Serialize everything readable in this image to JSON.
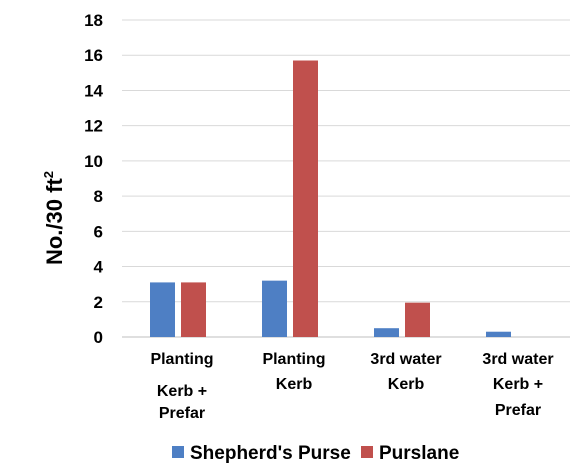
{
  "chart_data": {
    "type": "bar",
    "ylabel": "No./30 ft",
    "ylabel_superscript": "2",
    "ylim": [
      0,
      18
    ],
    "yticks": [
      0,
      2,
      4,
      6,
      8,
      10,
      12,
      14,
      16,
      18
    ],
    "grid": true,
    "legend_position": "bottom",
    "categories": [
      [
        "Planting",
        "Kerb +",
        "Prefar"
      ],
      [
        "Planting",
        "Kerb"
      ],
      [
        "3rd water",
        "Kerb"
      ],
      [
        "3rd water",
        "Kerb +",
        "Prefar"
      ]
    ],
    "series": [
      {
        "name": "Shepherd's Purse",
        "color": "#4e7fc4",
        "values": [
          3.1,
          3.2,
          0.5,
          0.3
        ]
      },
      {
        "name": "Purslane",
        "color": "#c0504d",
        "values": [
          3.1,
          15.7,
          1.95,
          0
        ]
      }
    ]
  }
}
